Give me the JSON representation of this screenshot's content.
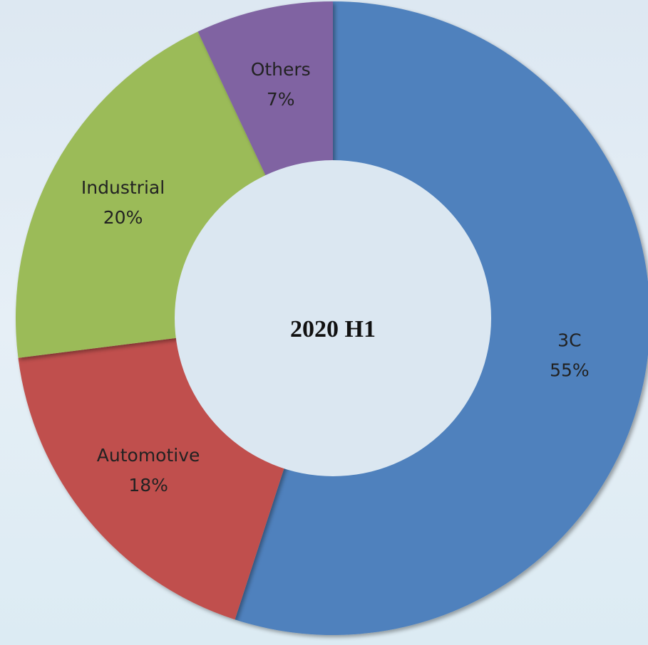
{
  "chart_data": {
    "type": "donut",
    "center_label": "2020 H1",
    "categories": [
      "3C",
      "Automotive",
      "Industrial",
      "Others"
    ],
    "values": [
      55,
      18,
      20,
      7
    ],
    "value_labels": [
      "55%",
      "18%",
      "20%",
      "7%"
    ],
    "colors": [
      "#4f81bd",
      "#c0504d",
      "#9bbb59",
      "#8064a2"
    ]
  }
}
